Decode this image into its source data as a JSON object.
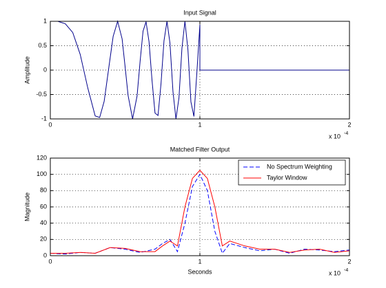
{
  "chart_data": [
    {
      "type": "line",
      "title": "Input Signal",
      "ylabel": "Amplitude",
      "x_scale_label": "x 10",
      "x_scale_exponent": "-4",
      "x": [
        0,
        0.05,
        0.1,
        0.15,
        0.2,
        0.25,
        0.3,
        0.33,
        0.36,
        0.4,
        0.42,
        0.45,
        0.48,
        0.5,
        0.52,
        0.55,
        0.58,
        0.6,
        0.62,
        0.64,
        0.66,
        0.68,
        0.7,
        0.72,
        0.74,
        0.76,
        0.78,
        0.8,
        0.82,
        0.84,
        0.86,
        0.88,
        0.9,
        0.92,
        0.94,
        0.96,
        0.98,
        1,
        1,
        2
      ],
      "series": [
        {
          "color": "#00008b",
          "line_style": "solid",
          "values": [
            1,
            1,
            0.95,
            0.77,
            0.32,
            -0.36,
            -0.94,
            -0.97,
            -0.64,
            0.25,
            0.69,
            1,
            0.64,
            0.07,
            -0.52,
            -1,
            -0.53,
            0.17,
            0.8,
            0.99,
            0.58,
            -0.21,
            -0.88,
            -0.93,
            -0.28,
            0.6,
            1,
            0.55,
            -0.44,
            -1,
            -0.57,
            0.45,
            1,
            0.42,
            -0.65,
            -0.95,
            -0.04,
            0.93,
            0,
            0
          ]
        }
      ],
      "xlim": [
        0,
        2
      ],
      "ylim": [
        -1,
        1
      ],
      "xticks": [
        0,
        1,
        2
      ],
      "yticks": [
        -1,
        -0.5,
        0,
        0.5,
        1
      ],
      "grid": true
    },
    {
      "type": "line",
      "title": "Matched Filter Output",
      "ylabel": "Magnitude",
      "xlabel": "Seconds",
      "x_scale_label": "x 10",
      "x_scale_exponent": "-4",
      "x": [
        0,
        0.1,
        0.2,
        0.3,
        0.4,
        0.5,
        0.6,
        0.7,
        0.75,
        0.8,
        0.85,
        0.9,
        0.95,
        1,
        1.05,
        1.1,
        1.15,
        1.2,
        1.3,
        1.4,
        1.5,
        1.6,
        1.7,
        1.8,
        1.9,
        2
      ],
      "series": [
        {
          "name": "No Spectrum Weighting",
          "color": "#0000ff",
          "line_style": "dashed",
          "values": [
            3,
            2,
            4,
            3,
            10,
            8,
            4,
            8,
            15,
            20,
            5,
            40,
            85,
            100,
            80,
            30,
            3,
            15,
            10,
            6,
            8,
            3,
            8,
            7,
            5,
            7
          ]
        },
        {
          "name": "Taylor Window",
          "color": "#ff0000",
          "line_style": "solid",
          "values": [
            3,
            3,
            4,
            3,
            10,
            9,
            5,
            5,
            12,
            18,
            12,
            60,
            95,
            105,
            95,
            60,
            12,
            18,
            12,
            8,
            8,
            4,
            7,
            8,
            4,
            6
          ]
        }
      ],
      "xlim": [
        0,
        2
      ],
      "ylim": [
        0,
        120
      ],
      "xticks": [
        0,
        1,
        2
      ],
      "yticks": [
        0,
        20,
        40,
        60,
        80,
        100,
        120
      ],
      "grid": true,
      "legend": "upper right"
    }
  ]
}
